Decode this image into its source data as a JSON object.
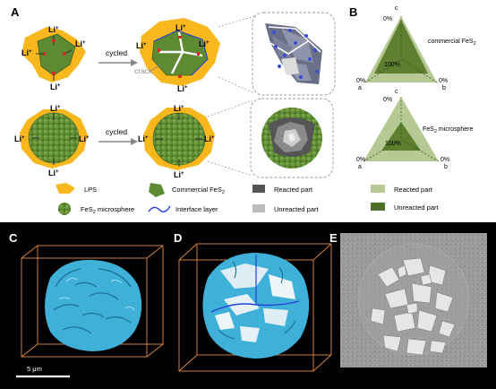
{
  "panels": {
    "a": "A",
    "b": "B",
    "c": "C",
    "d": "D",
    "e": "E"
  },
  "panel_a": {
    "li": "Li",
    "plus": "+",
    "cycled": "cycled",
    "crack": "crack"
  },
  "panel_b": {
    "top_label": "commercial FeS",
    "top_sub": "2",
    "bottom_label": "FeS",
    "bottom_sub": "2",
    "bottom_label_tail": " microsphere",
    "vertex_c": "c",
    "vertex_a": "a",
    "vertex_b": "b",
    "zero": "0%",
    "hundred": "100%"
  },
  "legend": {
    "lps": "LPS",
    "microsphere": "FeS",
    "microsphere_sub": "2",
    "microsphere_tail": " microsphere",
    "commercial": "Commercial FeS",
    "commercial_sub": "2",
    "interface": "Interface layer",
    "reacted": "Reacted part",
    "unreacted": "Unreacted part",
    "b_reacted": "Reacted part",
    "b_unreacted": "Unreacted part"
  },
  "scale_bar": "5 μm",
  "colors": {
    "lps": "#f7b71d",
    "green_dark": "#4d6f27",
    "green_mid": "#6b8e3a",
    "green_light": "#a8c07f",
    "cyan": "#3fb0d8",
    "box": "#e08a3c",
    "reacted": "#555555",
    "unreacted": "#bbbbbb"
  }
}
